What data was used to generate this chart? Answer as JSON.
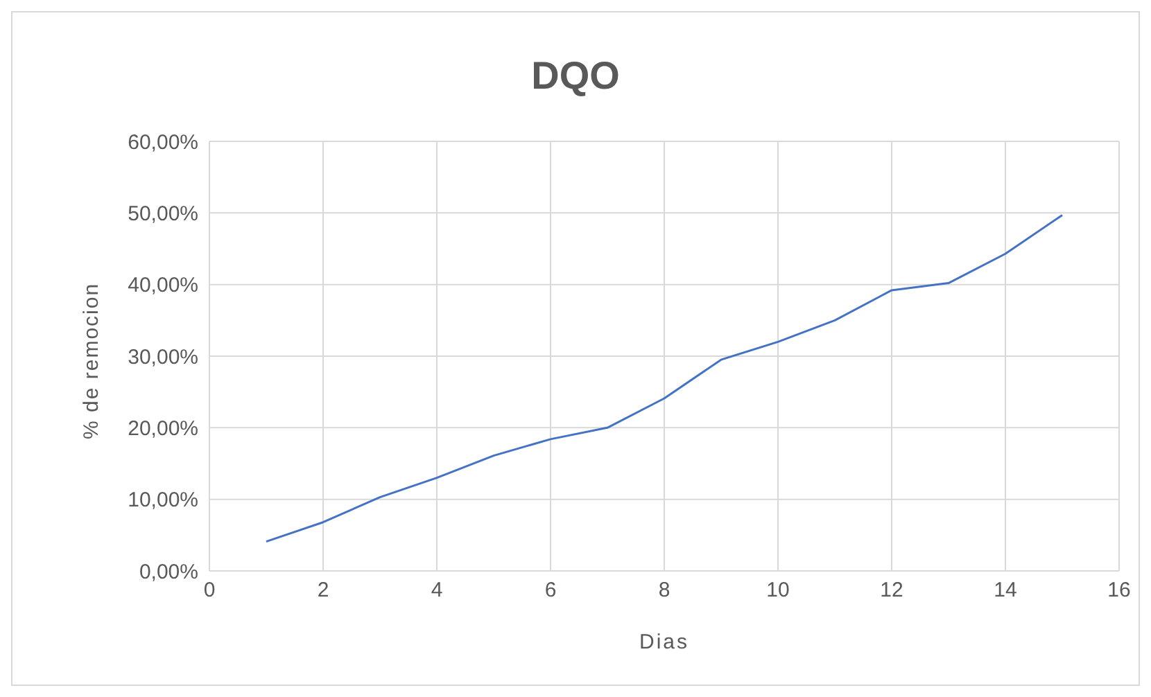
{
  "chart_data": {
    "type": "line",
    "title": "DQO",
    "xlabel": "Dias",
    "ylabel": "% de remocion",
    "x": [
      1,
      2,
      3,
      4,
      5,
      6,
      7,
      8,
      9,
      10,
      11,
      12,
      13,
      14,
      15
    ],
    "series": [
      {
        "color": "#4472c4",
        "values": [
          4.1,
          6.8,
          10.3,
          13.0,
          16.1,
          18.4,
          20.0,
          24.1,
          29.5,
          32.0,
          35.0,
          39.2,
          40.2,
          44.3,
          49.7
        ]
      }
    ],
    "xlim": [
      0,
      16
    ],
    "xticks": [
      0,
      2,
      4,
      6,
      8,
      10,
      12,
      14,
      16
    ],
    "ylim": [
      0,
      60
    ],
    "yticks": [
      {
        "value": 0,
        "label": "0,00%"
      },
      {
        "value": 10,
        "label": "10,00%"
      },
      {
        "value": 20,
        "label": "20,00%"
      },
      {
        "value": 30,
        "label": "30,00%"
      },
      {
        "value": 40,
        "label": "40,00%"
      },
      {
        "value": 50,
        "label": "50,00%"
      },
      {
        "value": 60,
        "label": "60,00%"
      }
    ],
    "grid": true,
    "legend": false,
    "marker": "none",
    "line_style": "solid"
  }
}
